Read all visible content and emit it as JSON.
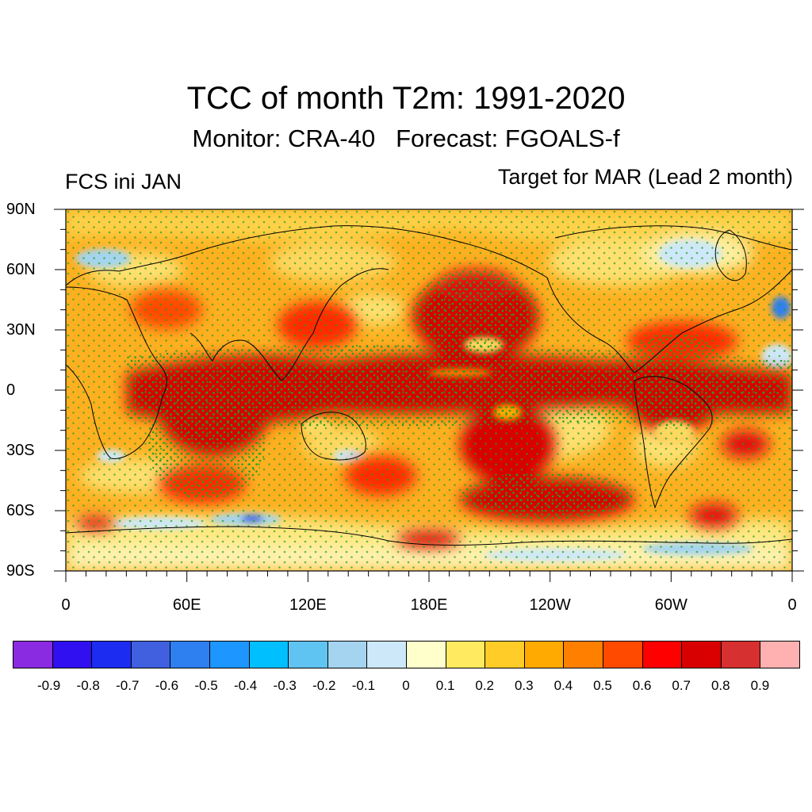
{
  "figure": {
    "title": "TCC of month T2m: 1991-2020",
    "subtitle": "Monitor: CRA-40   Forecast: FGOALS-f",
    "left_label": "FCS ini JAN",
    "right_label": "Target for MAR (Lead 2 month)"
  },
  "map": {
    "projection": "cylindrical-equidistant",
    "lon_range": [
      0,
      360
    ],
    "lat_range": [
      -90,
      90
    ],
    "lat_ticks": [
      "90N",
      "60N",
      "30N",
      "0",
      "30S",
      "60S",
      "90S"
    ],
    "lon_ticks": [
      "0",
      "60E",
      "120E",
      "180E",
      "120W",
      "60W",
      "0"
    ],
    "stippling": "significant correlation (green dots)",
    "stipple_color": "#22a022"
  },
  "colorbar": {
    "colors": [
      "#8a2be2",
      "#3010f0",
      "#1c2cf0",
      "#4060e0",
      "#2e7ff0",
      "#1e96ff",
      "#00bfff",
      "#60c4f2",
      "#a4d4f0",
      "#cde8f8",
      "#ffffcc",
      "#ffea60",
      "#ffcc28",
      "#ffaa00",
      "#ff7f00",
      "#ff4a00",
      "#ff0000",
      "#d80000",
      "#d63030",
      "#ffb0b0"
    ],
    "labels": [
      "-0.9",
      "-0.8",
      "-0.7",
      "-0.6",
      "-0.5",
      "-0.4",
      "-0.3",
      "-0.2",
      "-0.1",
      "0",
      "0.1",
      "0.2",
      "0.3",
      "0.4",
      "0.5",
      "0.6",
      "0.7",
      "0.8",
      "0.9"
    ]
  }
}
